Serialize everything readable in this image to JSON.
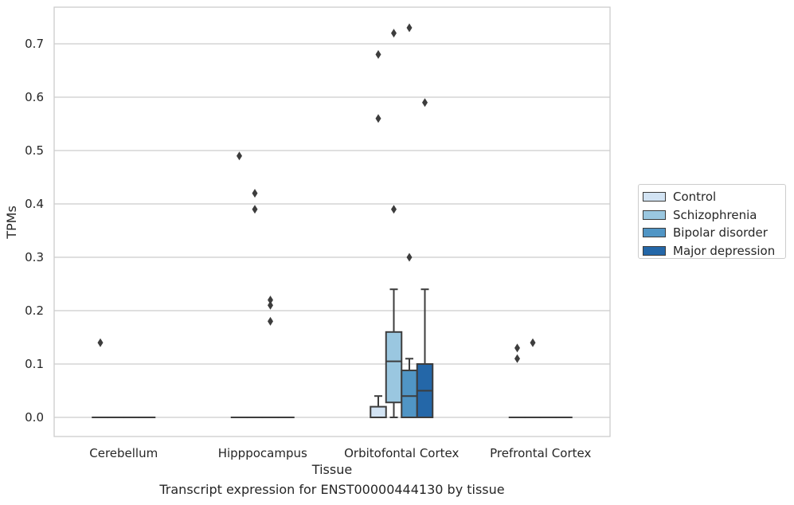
{
  "chart_data": {
    "type": "boxplot",
    "title": "",
    "xlabel": "Tissue",
    "ylabel": "TPMs",
    "caption": "Transcript expression for ENST00000444130 by tissue",
    "categories": [
      "Cerebellum",
      "Hipppocampus",
      "Orbitofontal Cortex",
      "Prefrontal Cortex"
    ],
    "ylim": [
      -0.035,
      0.77
    ],
    "yticks": [
      "0.0",
      "0.1",
      "0.2",
      "0.3",
      "0.4",
      "0.5",
      "0.6",
      "0.7"
    ],
    "grid": true,
    "legend_position": "right",
    "series": [
      {
        "name": "Control",
        "color": "#d2e3f3",
        "boxes": [
          {
            "q1": 0,
            "median": 0,
            "q3": 0,
            "whisker_low": 0,
            "whisker_high": 0,
            "outliers": [
              0.14
            ]
          },
          {
            "q1": 0,
            "median": 0,
            "q3": 0,
            "whisker_low": 0,
            "whisker_high": 0,
            "outliers": [
              0.49
            ]
          },
          {
            "q1": 0,
            "median": 0,
            "q3": 0.02,
            "whisker_low": 0,
            "whisker_high": 0.04,
            "outliers": [
              0.56,
              0.68
            ]
          },
          {
            "q1": 0,
            "median": 0,
            "q3": 0,
            "whisker_low": 0,
            "whisker_high": 0,
            "outliers": [
              0.11,
              0.13
            ]
          }
        ]
      },
      {
        "name": "Schizophrenia",
        "color": "#9ac7e0",
        "boxes": [
          {
            "q1": 0,
            "median": 0,
            "q3": 0,
            "whisker_low": 0,
            "whisker_high": 0,
            "outliers": []
          },
          {
            "q1": 0,
            "median": 0,
            "q3": 0,
            "whisker_low": 0,
            "whisker_high": 0,
            "outliers": [
              0.39,
              0.42
            ]
          },
          {
            "q1": 0.028,
            "median": 0.105,
            "q3": 0.16,
            "whisker_low": 0,
            "whisker_high": 0.24,
            "outliers": [
              0.39,
              0.72
            ]
          },
          {
            "q1": 0,
            "median": 0,
            "q3": 0,
            "whisker_low": 0,
            "whisker_high": 0,
            "outliers": [
              0.14
            ]
          }
        ]
      },
      {
        "name": "Bipolar disorder",
        "color": "#5095c5",
        "boxes": [
          {
            "q1": 0,
            "median": 0,
            "q3": 0,
            "whisker_low": 0,
            "whisker_high": 0,
            "outliers": []
          },
          {
            "q1": 0,
            "median": 0,
            "q3": 0,
            "whisker_low": 0,
            "whisker_high": 0,
            "outliers": [
              0.18,
              0.21,
              0.22
            ]
          },
          {
            "q1": 0,
            "median": 0.04,
            "q3": 0.088,
            "whisker_low": 0,
            "whisker_high": 0.11,
            "outliers": [
              0.3,
              0.73
            ]
          },
          {
            "q1": 0,
            "median": 0,
            "q3": 0,
            "whisker_low": 0,
            "whisker_high": 0,
            "outliers": []
          }
        ]
      },
      {
        "name": "Major depression",
        "color": "#2467a8",
        "boxes": [
          {
            "q1": 0,
            "median": 0,
            "q3": 0,
            "whisker_low": 0,
            "whisker_high": 0,
            "outliers": []
          },
          {
            "q1": 0,
            "median": 0,
            "q3": 0,
            "whisker_low": 0,
            "whisker_high": 0,
            "outliers": []
          },
          {
            "q1": 0,
            "median": 0.05,
            "q3": 0.1,
            "whisker_low": 0,
            "whisker_high": 0.24,
            "outliers": [
              0.59
            ]
          },
          {
            "q1": 0,
            "median": 0,
            "q3": 0,
            "whisker_low": 0,
            "whisker_high": 0,
            "outliers": []
          }
        ]
      }
    ]
  }
}
